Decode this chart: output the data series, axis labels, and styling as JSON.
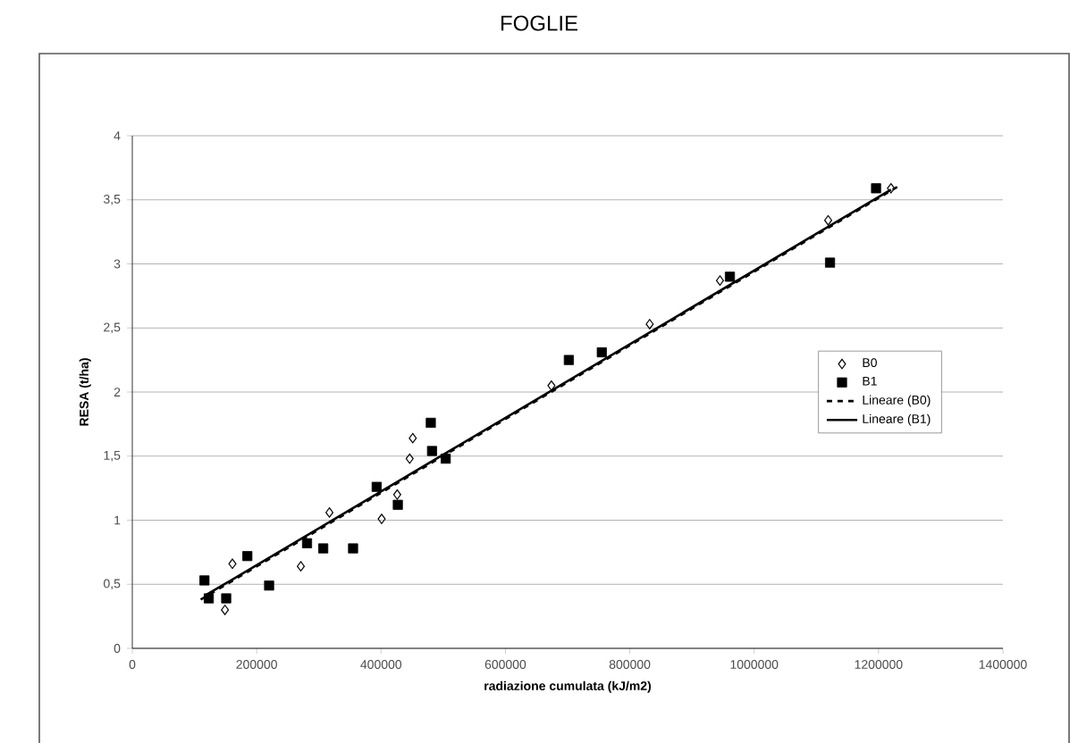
{
  "chart_data": {
    "type": "scatter",
    "title": "FOGLIE",
    "xlabel": "radiazione cumulata (kJ/m2)",
    "ylabel": "RESA (t/ha)",
    "xlim": [
      0,
      1400000
    ],
    "xticks": [
      0,
      200000,
      400000,
      600000,
      800000,
      1000000,
      1200000,
      1400000
    ],
    "ylim": [
      0,
      4
    ],
    "yticks": [
      0,
      {
        "value": 0.5,
        "label": "0,5"
      },
      1,
      {
        "value": 1.5,
        "label": "1,5"
      },
      2,
      {
        "value": 2.5,
        "label": "2,5"
      },
      3,
      {
        "value": 3.5,
        "label": "3,5"
      },
      4
    ],
    "grid": "y",
    "legend": "right",
    "series": [
      {
        "name": "B0",
        "marker": "diamond",
        "color": "#000000",
        "x": [
          149000,
          161000,
          271000,
          317000,
          401000,
          426000,
          446000,
          451000,
          674000,
          832000,
          945000,
          1119000,
          1220000
        ],
        "values": [
          0.3,
          0.66,
          0.64,
          1.06,
          1.01,
          1.2,
          1.48,
          1.64,
          2.05,
          2.53,
          2.87,
          3.34,
          3.59
        ]
      },
      {
        "name": "B1",
        "marker": "square",
        "color": "#000000",
        "x": [
          116000,
          123000,
          151000,
          185000,
          220000,
          281000,
          307000,
          355000,
          393000,
          427000,
          480000,
          482000,
          504000,
          702000,
          755000,
          961000,
          1122000,
          1196000
        ],
        "values": [
          0.53,
          0.39,
          0.39,
          0.72,
          0.49,
          0.82,
          0.78,
          0.78,
          1.26,
          1.12,
          1.76,
          1.54,
          1.48,
          2.25,
          2.31,
          2.9,
          3.01,
          3.59
        ]
      },
      {
        "name": "Lineare (B0)",
        "type": "line",
        "line_style": "dashed",
        "color": "#000000",
        "x": [
          110000,
          1230000
        ],
        "values": [
          0.38,
          3.6
        ]
      },
      {
        "name": "Lineare (B1)",
        "type": "line",
        "line_style": "solid",
        "color": "#000000",
        "x": [
          120000,
          1220000
        ],
        "values": [
          0.42,
          3.58
        ]
      }
    ]
  }
}
